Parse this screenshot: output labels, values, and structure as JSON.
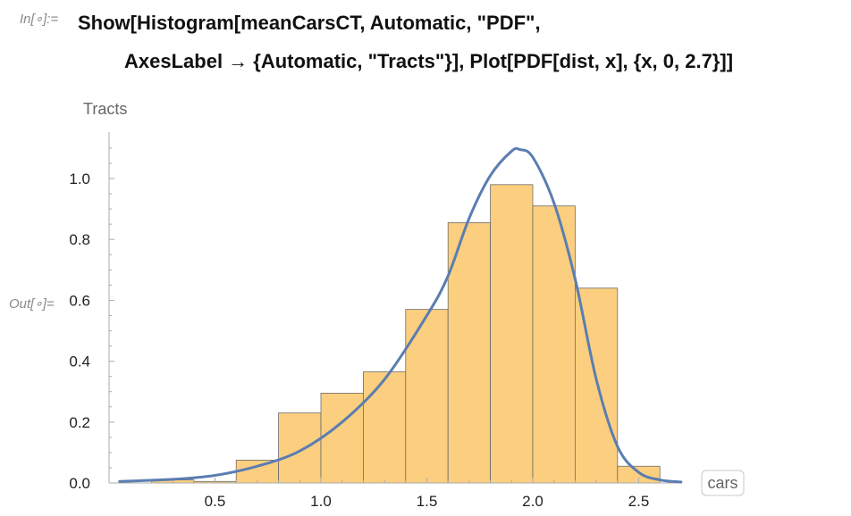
{
  "cell": {
    "in_label": "In[∘]:=",
    "out_label": "Out[∘]=",
    "code_line1": "Show[Histogram[meanCarsCT, Automatic, \"PDF\",",
    "code_line2": "AxesLabel → {Automatic, \"Tracts\"}], Plot[PDF[dist, x], {x, 0, 2.7}]]"
  },
  "chart_data": {
    "type": "bar",
    "title": "",
    "xlabel": "cars",
    "ylabel": "Tracts",
    "xlim": [
      0,
      2.7
    ],
    "ylim": [
      0,
      1.15
    ],
    "grid": false,
    "x_ticks": [
      0.5,
      1.0,
      1.5,
      2.0,
      2.5
    ],
    "x_tick_labels": [
      "0.5",
      "1.0",
      "1.5",
      "2.0",
      "2.5"
    ],
    "y_ticks": [
      0.0,
      0.2,
      0.4,
      0.6,
      0.8,
      1.0
    ],
    "y_tick_labels": [
      "0.0",
      "0.2",
      "0.4",
      "0.6",
      "0.8",
      "1.0"
    ],
    "bins": [
      {
        "x0": 0.2,
        "x1": 0.4,
        "value": 0.01
      },
      {
        "x0": 0.4,
        "x1": 0.6,
        "value": 0.005
      },
      {
        "x0": 0.6,
        "x1": 0.8,
        "value": 0.075
      },
      {
        "x0": 0.8,
        "x1": 1.0,
        "value": 0.23
      },
      {
        "x0": 1.0,
        "x1": 1.2,
        "value": 0.295
      },
      {
        "x0": 1.2,
        "x1": 1.4,
        "value": 0.365
      },
      {
        "x0": 1.4,
        "x1": 1.6,
        "value": 0.57
      },
      {
        "x0": 1.6,
        "x1": 1.8,
        "value": 0.855
      },
      {
        "x0": 1.8,
        "x1": 2.0,
        "value": 0.98
      },
      {
        "x0": 2.0,
        "x1": 2.2,
        "value": 0.91
      },
      {
        "x0": 2.2,
        "x1": 2.4,
        "value": 0.64
      },
      {
        "x0": 2.4,
        "x1": 2.6,
        "value": 0.055
      }
    ],
    "curve": {
      "x": [
        0.05,
        0.3,
        0.5,
        0.7,
        0.9,
        1.1,
        1.3,
        1.5,
        1.6,
        1.7,
        1.8,
        1.9,
        1.94,
        2.0,
        2.1,
        2.2,
        2.3,
        2.4,
        2.5,
        2.6,
        2.7
      ],
      "y": [
        0.005,
        0.012,
        0.025,
        0.055,
        0.105,
        0.2,
        0.34,
        0.55,
        0.68,
        0.87,
        1.01,
        1.09,
        1.095,
        1.07,
        0.92,
        0.67,
        0.34,
        0.12,
        0.035,
        0.01,
        0.003
      ]
    },
    "colors": {
      "bar_fill": "#fbcf7f",
      "bar_stroke": "#6b6b6b",
      "curve": "#5b7db1",
      "axis": "#aaaaaa"
    }
  }
}
